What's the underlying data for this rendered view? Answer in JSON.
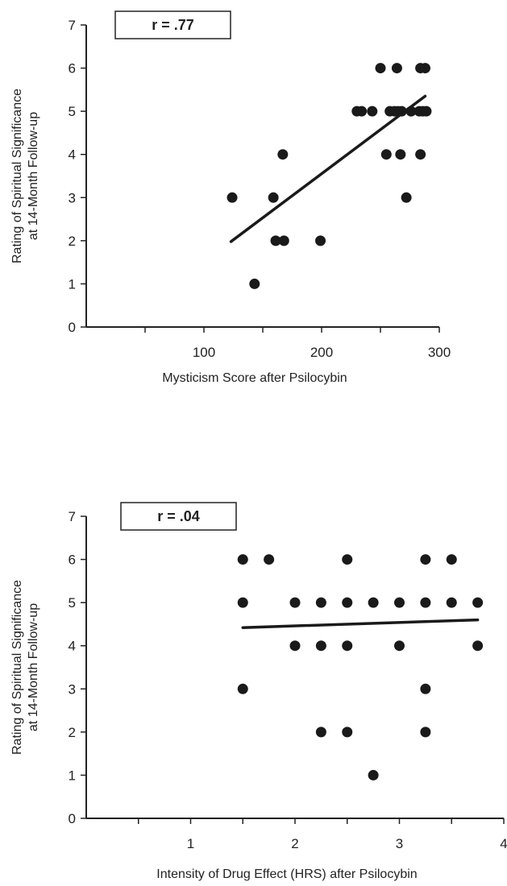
{
  "chart_data": [
    {
      "type": "scatter",
      "annotation": "r = .77",
      "xlabel": "Mysticism Score after Psilocybin",
      "ylabel_lines": [
        "Rating of Spiritual Significance",
        "at 14-Month Follow-up"
      ],
      "xlim": [
        0,
        300
      ],
      "ylim": [
        0,
        7
      ],
      "x_ticks": [
        50,
        100,
        150,
        200,
        250,
        300
      ],
      "x_tick_labels": [
        "",
        "100",
        "",
        "200",
        "",
        "300"
      ],
      "y_ticks": [
        0,
        1,
        2,
        3,
        4,
        5,
        6,
        7
      ],
      "y_tick_labels": [
        "0",
        "1",
        "2",
        "3",
        "4",
        "5",
        "6",
        "7"
      ],
      "points": [
        {
          "x": 124,
          "y": 3
        },
        {
          "x": 143,
          "y": 1
        },
        {
          "x": 159,
          "y": 3
        },
        {
          "x": 161,
          "y": 2
        },
        {
          "x": 167,
          "y": 4
        },
        {
          "x": 168,
          "y": 2
        },
        {
          "x": 199,
          "y": 2
        },
        {
          "x": 230,
          "y": 5
        },
        {
          "x": 234,
          "y": 5
        },
        {
          "x": 243,
          "y": 5
        },
        {
          "x": 250,
          "y": 6
        },
        {
          "x": 255,
          "y": 4
        },
        {
          "x": 258,
          "y": 5
        },
        {
          "x": 262,
          "y": 5
        },
        {
          "x": 264,
          "y": 6
        },
        {
          "x": 265,
          "y": 5
        },
        {
          "x": 267,
          "y": 4
        },
        {
          "x": 268,
          "y": 5
        },
        {
          "x": 272,
          "y": 3
        },
        {
          "x": 276,
          "y": 5
        },
        {
          "x": 283,
          "y": 5
        },
        {
          "x": 284,
          "y": 6
        },
        {
          "x": 284,
          "y": 4
        },
        {
          "x": 286,
          "y": 5
        },
        {
          "x": 288,
          "y": 6
        },
        {
          "x": 289,
          "y": 5
        }
      ],
      "fit_line": {
        "x": [
          123,
          288
        ],
        "y": [
          1.98,
          5.35
        ]
      }
    },
    {
      "type": "scatter",
      "annotation": "r = .04",
      "xlabel": "Intensity of Drug Effect (HRS) after Psilocybin",
      "ylabel_lines": [
        "Rating of Spiritual Significance",
        "at 14-Month Follow-up"
      ],
      "xlim": [
        0,
        4
      ],
      "ylim": [
        0,
        7
      ],
      "x_ticks": [
        0.5,
        1,
        1.5,
        2,
        2.5,
        3,
        3.5,
        4
      ],
      "x_tick_labels": [
        "",
        "1",
        "",
        "2",
        "",
        "3",
        "",
        "4"
      ],
      "y_ticks": [
        0,
        1,
        2,
        3,
        4,
        5,
        6,
        7
      ],
      "y_tick_labels": [
        "0",
        "1",
        "2",
        "3",
        "4",
        "5",
        "6",
        "7"
      ],
      "points": [
        {
          "x": 1.5,
          "y": 6
        },
        {
          "x": 1.5,
          "y": 5
        },
        {
          "x": 1.5,
          "y": 3
        },
        {
          "x": 1.75,
          "y": 6
        },
        {
          "x": 2.0,
          "y": 5
        },
        {
          "x": 2.0,
          "y": 4
        },
        {
          "x": 2.25,
          "y": 5
        },
        {
          "x": 2.25,
          "y": 4
        },
        {
          "x": 2.25,
          "y": 2
        },
        {
          "x": 2.5,
          "y": 6
        },
        {
          "x": 2.5,
          "y": 5
        },
        {
          "x": 2.5,
          "y": 4
        },
        {
          "x": 2.5,
          "y": 2
        },
        {
          "x": 2.75,
          "y": 5
        },
        {
          "x": 2.75,
          "y": 1
        },
        {
          "x": 3.0,
          "y": 5
        },
        {
          "x": 3.0,
          "y": 4
        },
        {
          "x": 3.25,
          "y": 6
        },
        {
          "x": 3.25,
          "y": 5
        },
        {
          "x": 3.25,
          "y": 3
        },
        {
          "x": 3.25,
          "y": 2
        },
        {
          "x": 3.5,
          "y": 6
        },
        {
          "x": 3.5,
          "y": 5
        },
        {
          "x": 3.75,
          "y": 5
        },
        {
          "x": 3.75,
          "y": 4
        }
      ],
      "fit_line": {
        "x": [
          1.5,
          3.75
        ],
        "y": [
          4.42,
          4.6
        ]
      }
    }
  ]
}
